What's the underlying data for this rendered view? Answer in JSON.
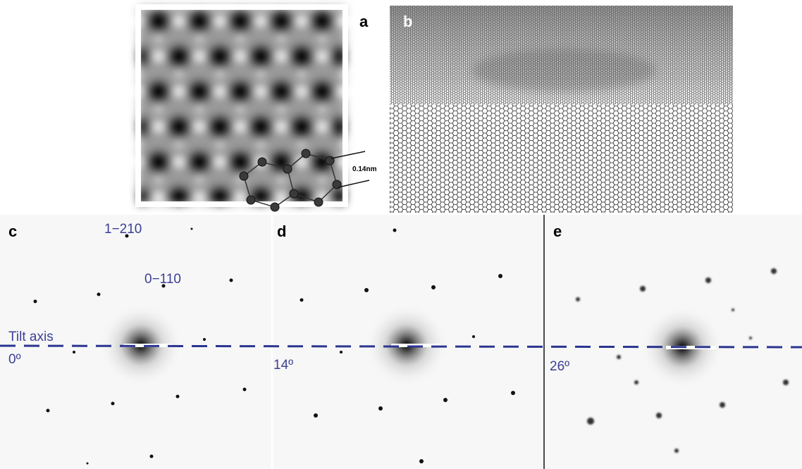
{
  "panels": {
    "a": {
      "label": "a",
      "scale_label": "0.14nm"
    },
    "b": {
      "label": "b"
    },
    "c": {
      "label": "c",
      "spot_labels": [
        "1−210",
        "0−110"
      ],
      "axis_label": "Tilt axis",
      "angle": "0º"
    },
    "d": {
      "label": "d",
      "angle": "14º"
    },
    "e": {
      "label": "e",
      "angle": "26º"
    }
  }
}
